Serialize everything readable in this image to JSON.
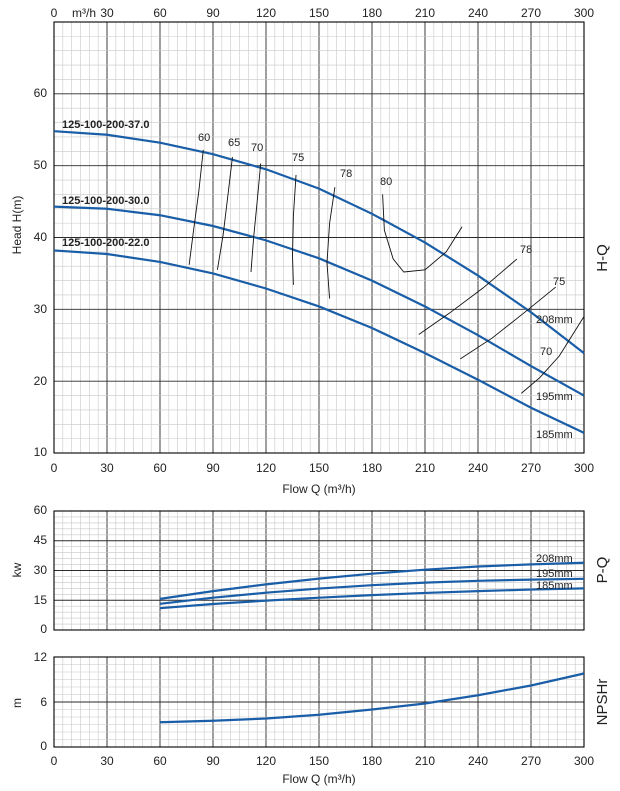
{
  "chart_data": [
    {
      "type": "line",
      "name_label": "H-Q",
      "xlabel": "Flow Q (m³/h)",
      "ylabel": "Head H(m)",
      "top_axis_unit": "m³/h",
      "x_ticks": [
        0,
        30,
        60,
        90,
        120,
        150,
        180,
        210,
        240,
        270,
        300
      ],
      "y_ticks": [
        10,
        20,
        30,
        40,
        50,
        60
      ],
      "xlim": [
        0,
        300
      ],
      "ylim": [
        10,
        68
      ],
      "series": [
        {
          "name": "125-100-200-37.0",
          "diameter_label": "208mm",
          "x": [
            0,
            30,
            60,
            90,
            120,
            150,
            180,
            210,
            240,
            270,
            300
          ],
          "y": [
            54.8,
            54.3,
            53.2,
            51.6,
            49.5,
            46.8,
            43.3,
            39.3,
            34.7,
            29.6,
            23.9
          ]
        },
        {
          "name": "125-100-200-30.0",
          "diameter_label": "195mm",
          "x": [
            0,
            30,
            60,
            90,
            120,
            150,
            180,
            210,
            240,
            270,
            300
          ],
          "y": [
            44.3,
            44.0,
            43.1,
            41.6,
            39.6,
            37.1,
            34.0,
            30.4,
            26.4,
            22.1,
            18.0
          ]
        },
        {
          "name": "125-100-200-22.0",
          "diameter_label": "185mm",
          "x": [
            0,
            30,
            60,
            90,
            120,
            150,
            180,
            210,
            240,
            270,
            300
          ],
          "y": [
            38.2,
            37.7,
            36.6,
            35.0,
            32.9,
            30.4,
            27.4,
            23.9,
            20.2,
            16.3,
            12.8
          ]
        }
      ],
      "efficiency_curves": [
        {
          "label": "60",
          "x": [
            84.5,
            82,
            79,
            76.5
          ],
          "y": [
            52.2,
            46.5,
            41,
            36.2
          ]
        },
        {
          "label": "65",
          "x": [
            101,
            98.5,
            95.8,
            92.5
          ],
          "y": [
            51.2,
            46,
            40.5,
            35.5
          ]
        },
        {
          "label": "70",
          "x": [
            117,
            115,
            113,
            111.5
          ],
          "y": [
            50.3,
            45,
            40,
            35.2
          ]
        },
        {
          "label": "75",
          "x": [
            137,
            135.5,
            135,
            135.5
          ],
          "y": [
            48.7,
            43,
            37.5,
            33.4
          ]
        },
        {
          "label": "78",
          "x": [
            159,
            156,
            154.5,
            156
          ],
          "y": [
            47,
            42,
            36.5,
            31.5
          ]
        },
        {
          "label": "80",
          "x": [
            186,
            187,
            192,
            198,
            210,
            222,
            231
          ],
          "y": [
            46,
            41,
            37,
            35.2,
            35.5,
            38,
            41.5
          ]
        },
        {
          "label": "78",
          "x": [
            206.5,
            224,
            243,
            262
          ],
          "y": [
            26.5,
            29.5,
            33,
            37
          ]
        },
        {
          "label": "75",
          "x": [
            230,
            248,
            266,
            284
          ],
          "y": [
            23.1,
            26,
            29.5,
            33.1
          ]
        },
        {
          "label": "70",
          "x": [
            264.5,
            275,
            286,
            300
          ],
          "y": [
            18.3,
            20.5,
            23.5,
            29
          ]
        }
      ]
    },
    {
      "type": "line",
      "name_label": "P-Q",
      "xlabel": "",
      "ylabel": "kw",
      "y_ticks": [
        0,
        15,
        30,
        45,
        60
      ],
      "xlim": [
        0,
        300
      ],
      "ylim": [
        0,
        60
      ],
      "series": [
        {
          "name": "208mm",
          "x": [
            60,
            90,
            120,
            150,
            180,
            210,
            240,
            270,
            300
          ],
          "y": [
            15.7,
            19.6,
            23.0,
            25.9,
            28.4,
            30.4,
            32.0,
            33.1,
            33.9
          ]
        },
        {
          "name": "195mm",
          "x": [
            60,
            90,
            120,
            150,
            180,
            210,
            240,
            270,
            300
          ],
          "y": [
            13.2,
            16.3,
            18.8,
            20.9,
            22.6,
            23.9,
            24.8,
            25.4,
            25.8
          ]
        },
        {
          "name": "185mm",
          "x": [
            60,
            90,
            120,
            150,
            180,
            210,
            240,
            270,
            300
          ],
          "y": [
            11.0,
            13.1,
            14.8,
            16.3,
            17.6,
            18.7,
            19.6,
            20.4,
            21.0
          ]
        }
      ]
    },
    {
      "type": "line",
      "name_label": "NPSHr",
      "xlabel": "Flow Q (m³/h)",
      "ylabel": "m",
      "x_ticks": [
        0,
        30,
        60,
        90,
        120,
        150,
        180,
        210,
        240,
        270,
        300
      ],
      "y_ticks": [
        0,
        6,
        12
      ],
      "xlim": [
        0,
        300
      ],
      "ylim": [
        0,
        12
      ],
      "series": [
        {
          "name": "",
          "x": [
            60,
            90,
            120,
            150,
            180,
            210,
            240,
            270,
            300
          ],
          "y": [
            3.3,
            3.5,
            3.8,
            4.3,
            5.0,
            5.8,
            6.9,
            8.2,
            9.8
          ]
        }
      ]
    }
  ]
}
